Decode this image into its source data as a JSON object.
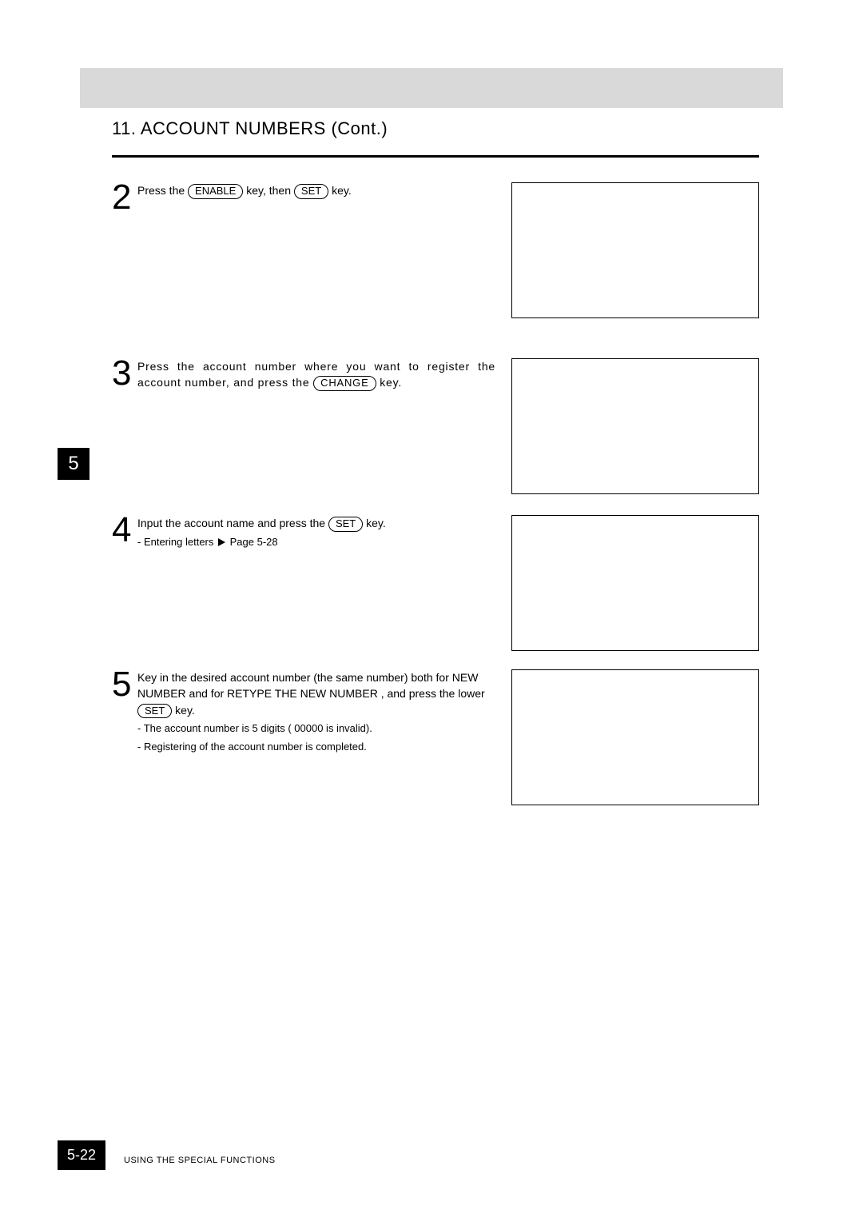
{
  "header": {
    "section_title": "11. ACCOUNT NUMBERS (Cont.)"
  },
  "chapter_tab": "5",
  "steps": {
    "s2": {
      "num": "2",
      "text_before_key1": "Press the ",
      "key1": "ENABLE",
      "text_mid": " key, then ",
      "key2": "SET",
      "text_after": " key."
    },
    "s3": {
      "num": "3",
      "text_before": "Press the account number where you want to register the account number, and press the ",
      "key1": "CHANGE",
      "text_after": " key."
    },
    "s4": {
      "num": "4",
      "text_before": "Input the account name and press the ",
      "key1": "SET",
      "text_after": " key.",
      "note_prefix": "- Entering letters ",
      "note_ref": "Page 5-28"
    },
    "s5": {
      "num": "5",
      "line1_a": "Key in the desired account number (the same number) both for ",
      "q1": "NEW NUMBER",
      "line1_b": " and for ",
      "q2": "RETYPE THE NEW NUMBER",
      "line1_c": " , and press the lower ",
      "key1": "SET",
      "line1_d": " key.",
      "note1": "- The account number is 5 digits ( 00000  is invalid).",
      "note2": "- Registering of the account number is completed."
    }
  },
  "footer": {
    "page_number": "5-22",
    "section_label": "USING THE SPECIAL FUNCTIONS"
  },
  "colors": {
    "header_band": "#d9d9d9",
    "tab_bg": "#000000",
    "tab_fg": "#ffffff",
    "rule": "#000000",
    "box_border": "#000000"
  }
}
